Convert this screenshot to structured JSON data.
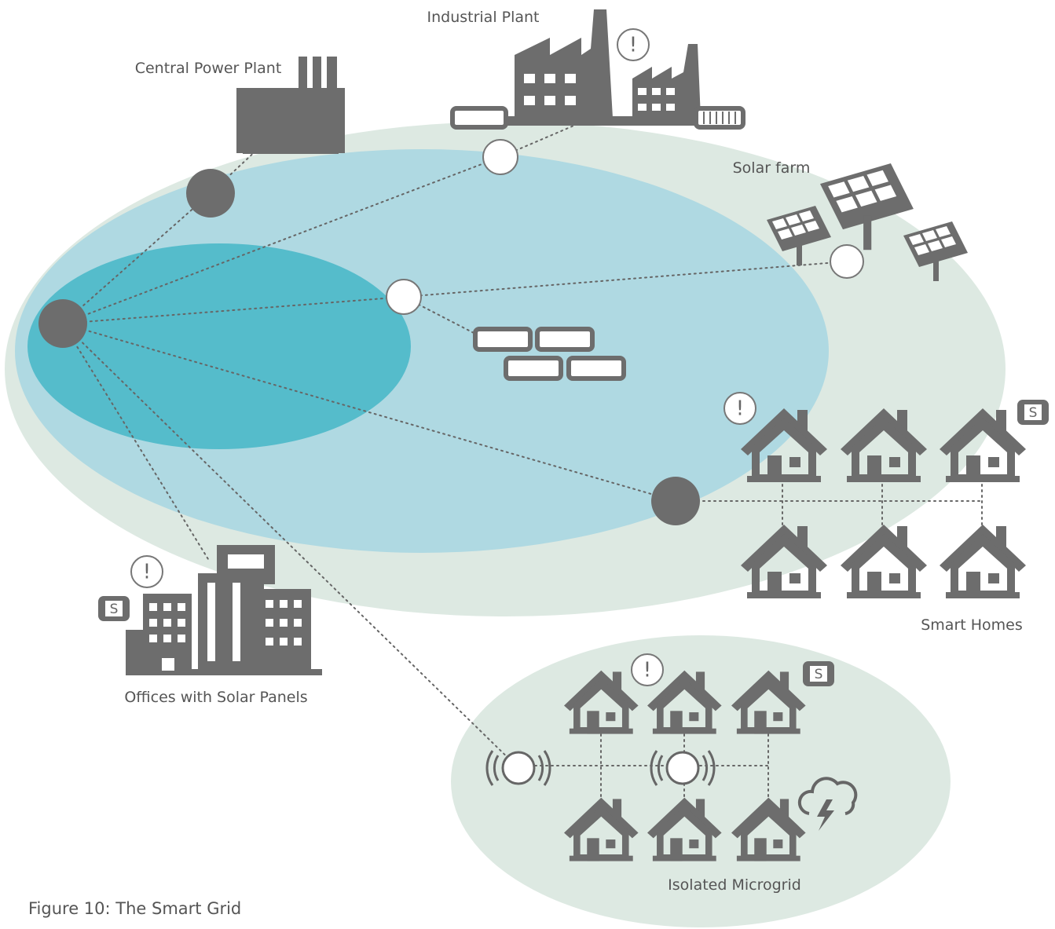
{
  "labels": {
    "industrial_plant": "Industrial Plant",
    "central_power_plant": "Central Power Plant",
    "solar_farm": "Solar farm",
    "smart_homes": "Smart Homes",
    "offices": "Offices with Solar Panels",
    "microgrid": "Isolated Microgrid"
  },
  "badges": {
    "alert": "!",
    "smart": "S"
  },
  "caption": "Figure 10: The Smart Grid"
}
